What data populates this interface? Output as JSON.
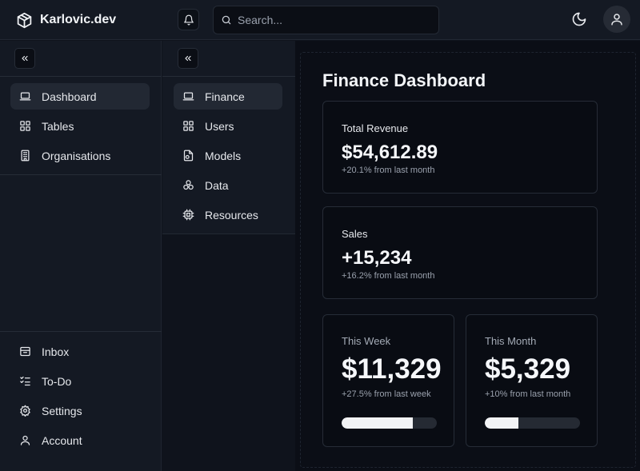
{
  "app": {
    "brand": "Karlovic.dev"
  },
  "search": {
    "placeholder": "Search..."
  },
  "icons": {
    "brand": "cube-icon",
    "bell": "bell-icon",
    "search": "search-icon",
    "theme": "moon-icon",
    "user": "user-icon",
    "collapse": "chevrons-left-icon"
  },
  "sidebar": {
    "primary_items": [
      {
        "label": "Dashboard",
        "icon": "laptop-icon",
        "active": true
      },
      {
        "label": "Tables",
        "icon": "grid-icon"
      },
      {
        "label": "Organisations",
        "icon": "building-icon"
      }
    ],
    "footer_items": [
      {
        "label": "Inbox",
        "icon": "inbox-icon"
      },
      {
        "label": "To-Do",
        "icon": "checklist-icon"
      },
      {
        "label": "Settings",
        "icon": "gear-icon"
      },
      {
        "label": "Account",
        "icon": "user-icon"
      }
    ]
  },
  "subnav": {
    "items": [
      {
        "label": "Finance",
        "icon": "laptop-icon",
        "active": true
      },
      {
        "label": "Users",
        "icon": "grid-icon"
      },
      {
        "label": "Models",
        "icon": "file-icon"
      },
      {
        "label": "Data",
        "icon": "cluster-icon"
      },
      {
        "label": "Resources",
        "icon": "chip-icon"
      }
    ]
  },
  "main": {
    "title": "Finance Dashboard",
    "revenue": {
      "label": "Total Revenue",
      "value": "$54,612.89",
      "sub": "+20.1% from last month"
    },
    "sales": {
      "label": "Sales",
      "value": "+15,234",
      "sub": "+16.2% from last month"
    },
    "week": {
      "label": "This Week",
      "value": "$11,329",
      "sub": "+27.5% from last week",
      "progress": 0.75
    },
    "month": {
      "label": "This Month",
      "value": "$5,329",
      "sub": "+10% from last month",
      "progress": 0.35
    }
  },
  "colors": {
    "background": "#0b0e16",
    "sidebar": "#141923",
    "active": "#222833",
    "accent": "#f2f3f5"
  }
}
